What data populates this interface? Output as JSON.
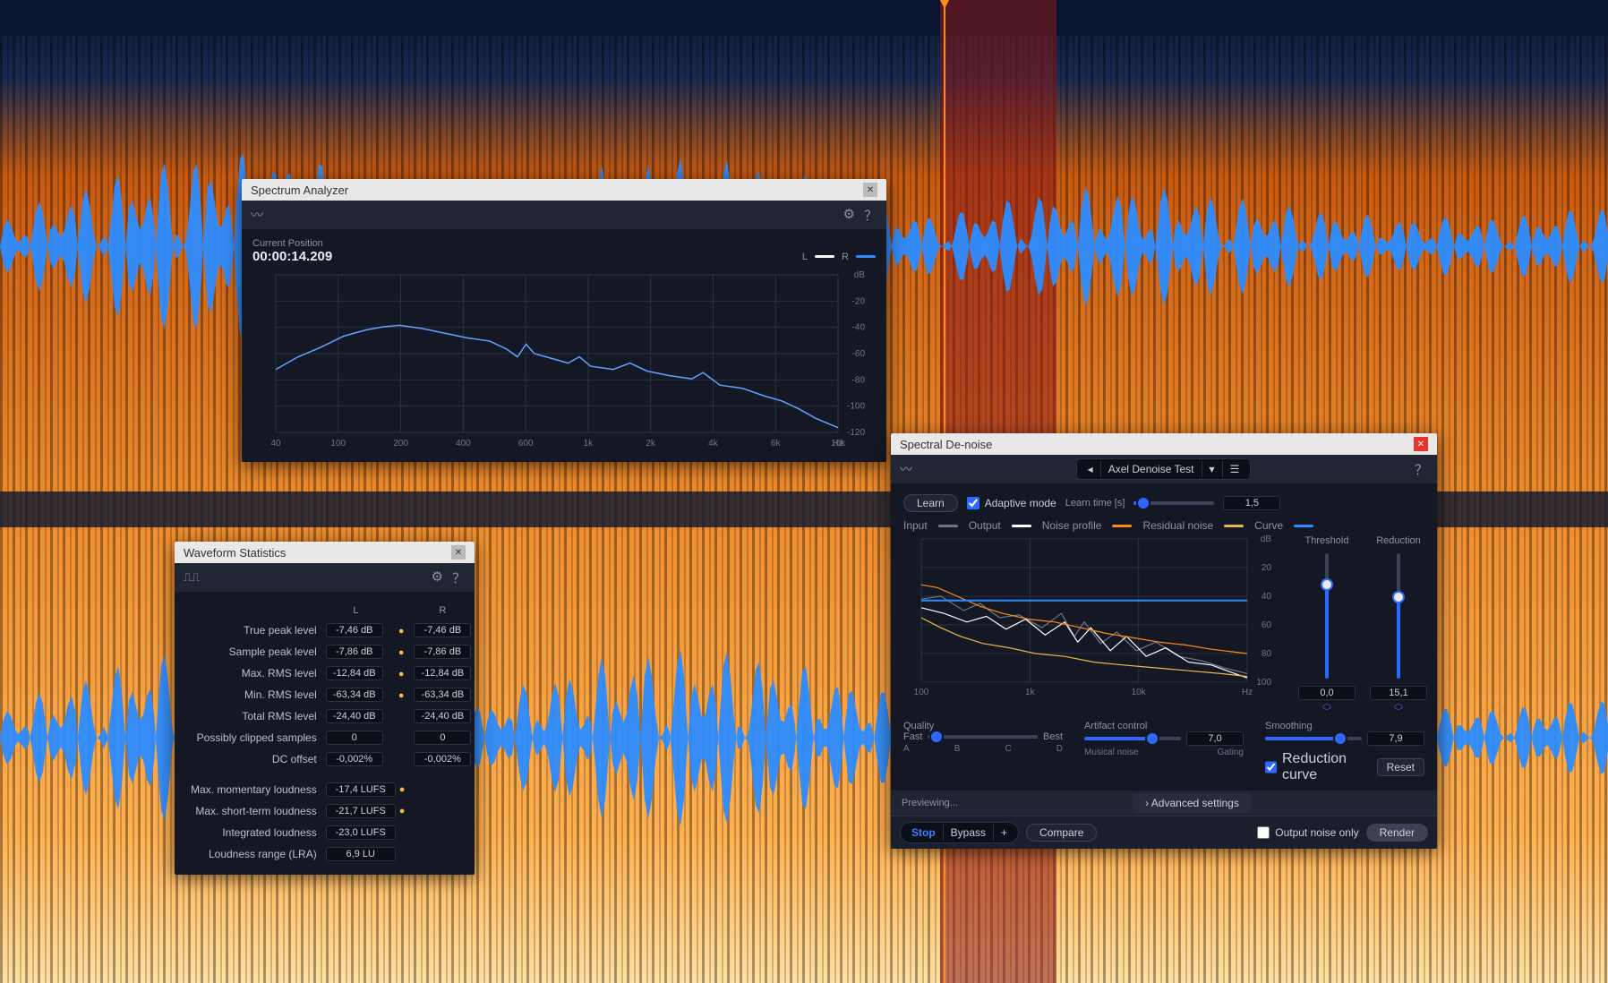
{
  "background": {
    "spectrogram_colors": [
      "#0a1630",
      "#1a2a50",
      "#d87020",
      "#f09030",
      "#ffb050",
      "#ffe0a0"
    ],
    "waveform_color": "#2d8cff",
    "playhead_color": "#ff8b1a",
    "selection_color": "#8a1a1a"
  },
  "spectrum": {
    "title": "Spectrum Analyzer",
    "pos_label": "Current Position",
    "pos_value": "00:00:14.209",
    "legend": {
      "L": "#ffffff",
      "R": "#2d8cff"
    },
    "y_ticks": [
      "dB",
      "-20",
      "-40",
      "-60",
      "-80",
      "-100",
      "-120"
    ],
    "x_ticks": [
      "40",
      "100",
      "200",
      "400",
      "600",
      "1k",
      "2k",
      "4k",
      "6k",
      "10k",
      "Hz"
    ],
    "curve": [
      [
        0,
        0.6
      ],
      [
        0.04,
        0.52
      ],
      [
        0.08,
        0.46
      ],
      [
        0.12,
        0.39
      ],
      [
        0.16,
        0.35
      ],
      [
        0.19,
        0.33
      ],
      [
        0.22,
        0.32
      ],
      [
        0.26,
        0.34
      ],
      [
        0.3,
        0.37
      ],
      [
        0.34,
        0.4
      ],
      [
        0.38,
        0.42
      ],
      [
        0.41,
        0.47
      ],
      [
        0.43,
        0.52
      ],
      [
        0.445,
        0.44
      ],
      [
        0.46,
        0.5
      ],
      [
        0.49,
        0.53
      ],
      [
        0.52,
        0.56
      ],
      [
        0.54,
        0.52
      ],
      [
        0.56,
        0.58
      ],
      [
        0.6,
        0.6
      ],
      [
        0.63,
        0.56
      ],
      [
        0.66,
        0.61
      ],
      [
        0.7,
        0.64
      ],
      [
        0.74,
        0.66
      ],
      [
        0.76,
        0.62
      ],
      [
        0.79,
        0.7
      ],
      [
        0.83,
        0.72
      ],
      [
        0.87,
        0.77
      ],
      [
        0.9,
        0.8
      ],
      [
        0.93,
        0.85
      ],
      [
        0.96,
        0.91
      ],
      [
        1.0,
        0.97
      ]
    ],
    "curve_color": "#6a9fff"
  },
  "stats": {
    "title": "Waveform Statistics",
    "col_headers": [
      "L",
      "R"
    ],
    "rows_lr": [
      {
        "label": "True peak level",
        "L": "-7,46 dB",
        "R": "-7,46 dB",
        "bulb": true
      },
      {
        "label": "Sample peak level",
        "L": "-7,86 dB",
        "R": "-7,86 dB",
        "bulb": true
      },
      {
        "label": "Max. RMS level",
        "L": "-12,84 dB",
        "R": "-12,84 dB",
        "bulb": true
      },
      {
        "label": "Min. RMS level",
        "L": "-63,34 dB",
        "R": "-63,34 dB",
        "bulb": true
      },
      {
        "label": "Total RMS level",
        "L": "-24,40 dB",
        "R": "-24,40 dB",
        "bulb": false
      },
      {
        "label": "Possibly clipped samples",
        "L": "0",
        "R": "0",
        "bulb": false
      },
      {
        "label": "DC offset",
        "L": "-0,002%",
        "R": "-0,002%",
        "bulb": false
      }
    ],
    "rows_single": [
      {
        "label": "Max. momentary loudness",
        "val": "-17,4 LUFS",
        "bulb": true
      },
      {
        "label": "Max. short-term loudness",
        "val": "-21,7 LUFS",
        "bulb": true
      },
      {
        "label": "Integrated loudness",
        "val": "-23,0 LUFS",
        "bulb": false
      },
      {
        "label": "Loudness range (LRA)",
        "val": "6,9 LU",
        "bulb": false
      }
    ]
  },
  "denoise": {
    "title": "Spectral De-noise",
    "preset": "Axel Denoise Test",
    "learn_btn": "Learn",
    "adaptive_label": "Adaptive mode",
    "adaptive_checked": true,
    "learntime_label": "Learn time [s]",
    "learntime_value": "1,5",
    "learntime_pct": 12,
    "legend": [
      {
        "name": "Input",
        "color": "#6c778c"
      },
      {
        "name": "Output",
        "color": "#ffffff"
      },
      {
        "name": "Noise profile",
        "color": "#ff8b1a"
      },
      {
        "name": "Residual noise",
        "color": "#f0b848"
      },
      {
        "name": "Curve",
        "color": "#2d8cff"
      }
    ],
    "y_ticks": [
      "dB",
      "20",
      "40",
      "60",
      "80",
      "100"
    ],
    "x_ticks": [
      "100",
      "1k",
      "10k",
      "Hz"
    ],
    "threshold": {
      "label": "Threshold",
      "value": "0,0",
      "pct": 75
    },
    "reduction": {
      "label": "Reduction",
      "value": "15,1",
      "pct": 65
    },
    "quality": {
      "label": "Quality",
      "left": "Fast",
      "right": "Best",
      "ticks": [
        "A",
        "B",
        "C",
        "D"
      ],
      "pct": 8
    },
    "artifact": {
      "label": "Artifact control",
      "left": "Musical noise",
      "right": "Gating",
      "value": "7,0",
      "pct": 70
    },
    "smoothing": {
      "label": "Smoothing",
      "value": "7,9",
      "pct": 78
    },
    "reduction_curve_label": "Reduction curve",
    "reduction_curve_checked": true,
    "reset_btn": "Reset",
    "advanced_label": "Advanced settings",
    "preview_label": "Previewing...",
    "stop_btn": "Stop",
    "bypass_btn": "Bypass",
    "plus_btn": "+",
    "compare_btn": "Compare",
    "noise_only_label": "Output noise only",
    "noise_only_checked": false,
    "render_btn": "Render",
    "curves": {
      "input": [
        [
          0,
          0.42
        ],
        [
          0.06,
          0.4
        ],
        [
          0.13,
          0.5
        ],
        [
          0.18,
          0.45
        ],
        [
          0.24,
          0.55
        ],
        [
          0.3,
          0.53
        ],
        [
          0.37,
          0.62
        ],
        [
          0.43,
          0.52
        ],
        [
          0.47,
          0.68
        ],
        [
          0.5,
          0.58
        ],
        [
          0.55,
          0.73
        ],
        [
          0.6,
          0.65
        ],
        [
          0.66,
          0.78
        ],
        [
          0.72,
          0.72
        ],
        [
          0.79,
          0.82
        ],
        [
          0.86,
          0.85
        ],
        [
          0.93,
          0.9
        ],
        [
          1.0,
          0.94
        ]
      ],
      "output": [
        [
          0,
          0.48
        ],
        [
          0.07,
          0.52
        ],
        [
          0.14,
          0.58
        ],
        [
          0.2,
          0.54
        ],
        [
          0.26,
          0.63
        ],
        [
          0.32,
          0.56
        ],
        [
          0.38,
          0.67
        ],
        [
          0.44,
          0.58
        ],
        [
          0.48,
          0.72
        ],
        [
          0.52,
          0.62
        ],
        [
          0.58,
          0.78
        ],
        [
          0.63,
          0.68
        ],
        [
          0.69,
          0.82
        ],
        [
          0.75,
          0.76
        ],
        [
          0.82,
          0.86
        ],
        [
          0.89,
          0.88
        ],
        [
          0.95,
          0.93
        ],
        [
          1.0,
          0.97
        ]
      ],
      "noise": [
        [
          0,
          0.32
        ],
        [
          0.05,
          0.34
        ],
        [
          0.11,
          0.4
        ],
        [
          0.18,
          0.47
        ],
        [
          0.25,
          0.52
        ],
        [
          0.33,
          0.56
        ],
        [
          0.41,
          0.58
        ],
        [
          0.49,
          0.62
        ],
        [
          0.57,
          0.66
        ],
        [
          0.65,
          0.69
        ],
        [
          0.73,
          0.72
        ],
        [
          0.81,
          0.74
        ],
        [
          0.89,
          0.77
        ],
        [
          1.0,
          0.8
        ]
      ],
      "resid": [
        [
          0,
          0.55
        ],
        [
          0.06,
          0.62
        ],
        [
          0.12,
          0.68
        ],
        [
          0.19,
          0.73
        ],
        [
          0.27,
          0.76
        ],
        [
          0.35,
          0.8
        ],
        [
          0.44,
          0.82
        ],
        [
          0.53,
          0.86
        ],
        [
          0.62,
          0.88
        ],
        [
          0.72,
          0.9
        ],
        [
          0.82,
          0.92
        ],
        [
          0.92,
          0.94
        ],
        [
          1.0,
          0.96
        ]
      ],
      "curve": [
        [
          0,
          0.43
        ],
        [
          1.0,
          0.43
        ]
      ]
    }
  }
}
